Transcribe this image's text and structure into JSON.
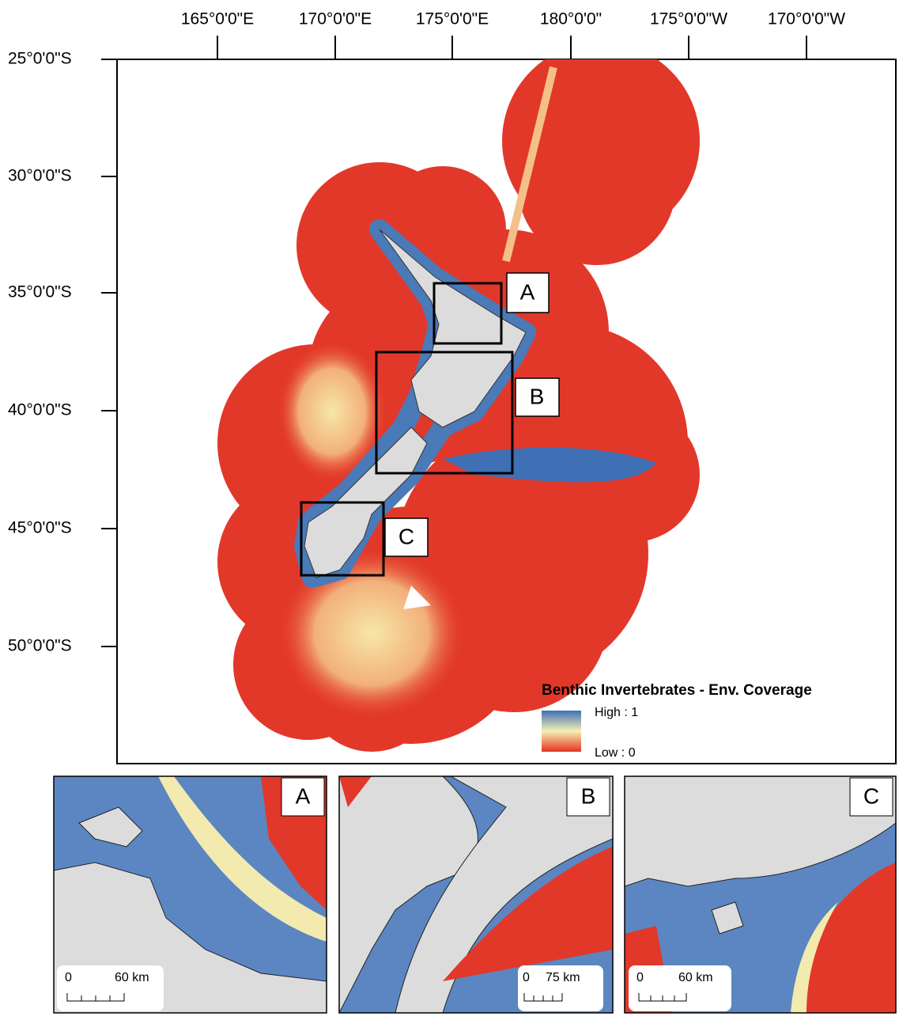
{
  "map": {
    "lon_labels": [
      "165°0'0\"E",
      "170°0'0\"E",
      "175°0'0\"E",
      "180°0'0\"",
      "175°0'0\"W",
      "170°0'0\"W"
    ],
    "lat_labels": [
      "25°0'0\"S",
      "30°0'0\"S",
      "35°0'0\"S",
      "40°0'0\"S",
      "45°0'0\"S",
      "50°0'0\"S"
    ],
    "inset_markers": [
      "A",
      "B",
      "C"
    ],
    "legend": {
      "title": "Benthic Invertebrates - Env. Coverage",
      "high": "High : 1",
      "low": "Low : 0"
    },
    "insets": [
      {
        "label": "A",
        "scale_zero": "0",
        "scale_distance": "60 km"
      },
      {
        "label": "B",
        "scale_zero": "0",
        "scale_distance": "75 km"
      },
      {
        "label": "C",
        "scale_zero": "0",
        "scale_distance": "60 km"
      }
    ]
  }
}
